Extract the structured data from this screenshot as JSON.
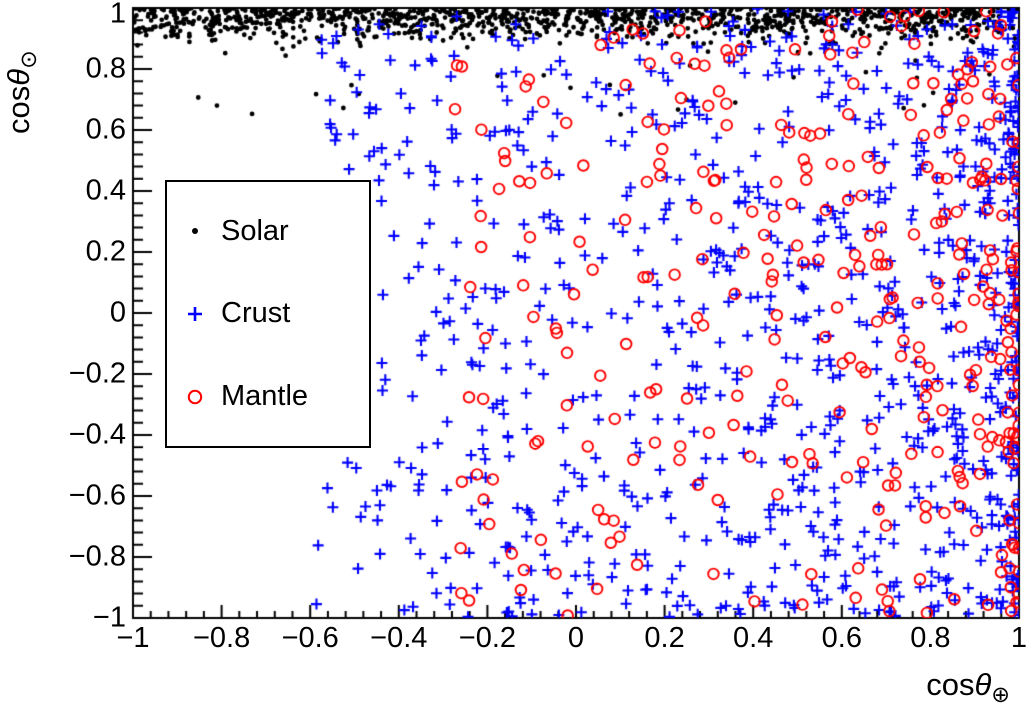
{
  "chart_data": {
    "type": "scatter",
    "title": "",
    "xlabel": {
      "prefix": "cos",
      "symbol": "θ",
      "subscript": "⊕"
    },
    "ylabel": {
      "prefix": "cos",
      "symbol": "θ",
      "subscript": "⊙"
    },
    "xlim": [
      -1,
      1
    ],
    "ylim": [
      -1,
      1
    ],
    "grid": false,
    "legend_position": "upper-left-inside",
    "legend_border_color": "#000000",
    "legend_background": "#ffffff",
    "frame_color": "#000000",
    "background_color": "#ffffff",
    "xticks": {
      "values": [
        -1,
        -0.8,
        -0.6,
        -0.4,
        -0.2,
        0,
        0.2,
        0.4,
        0.6,
        0.8,
        1
      ],
      "labels": [
        "−1",
        "−0.8",
        "−0.6",
        "−0.4",
        "−0.2",
        "0",
        "0.2",
        "0.4",
        "0.6",
        "0.8",
        "1"
      ],
      "minor_step": 0.04,
      "minor_per_major": 5
    },
    "yticks": {
      "values": [
        1,
        0.8,
        0.6,
        0.4,
        0.2,
        0,
        -0.2,
        -0.4,
        -0.6,
        -0.8,
        -1
      ],
      "labels": [
        "1",
        "0.8",
        "0.6",
        "0.4",
        "0.2",
        "0",
        "−0.2",
        "−0.4",
        "−0.6",
        "−0.8",
        "−1"
      ],
      "minor_step": 0.04,
      "minor_per_major": 5
    },
    "series": [
      {
        "name": "Solar",
        "marker": "dot",
        "color": "#000000",
        "marker_size": 2.4,
        "line_width": 1,
        "n_points": 1200,
        "seed": 11,
        "x_dist": {
          "type": "uniform",
          "min": -1,
          "max": 1
        },
        "y_dist": {
          "type": "half_gauss_below",
          "center": 1,
          "sigma": 0.05,
          "min": 0.74
        },
        "outliers": {
          "count": 26,
          "x_min": -1,
          "x_max": 1,
          "y_min": 0.64,
          "y_max": 0.92
        },
        "description": "band concentrated at cos-theta-sun between 0.85 and 1 across all x, sparse outliers down to 0.65"
      },
      {
        "name": "Crust",
        "marker": "plus",
        "color": "#0000ff",
        "marker_size": 5.5,
        "line_width": 2.1,
        "n_points": 1000,
        "seed": 23,
        "x_dist": {
          "type": "power_right",
          "max": 1,
          "a": 1.6,
          "k": 1.7
        },
        "y_dist": {
          "type": "uniform",
          "min": -1,
          "max": 1
        },
        "description": "spans cos-theta-earth from about -0.6 to 1, density increasing toward 1, uniform vertically"
      },
      {
        "name": "Mantle",
        "marker": "circle",
        "color": "#ff0000",
        "marker_size": 5.3,
        "line_width": 1.9,
        "n_points": 340,
        "seed": 37,
        "x_dist": {
          "type": "power_right",
          "max": 1,
          "a": 1.28,
          "k": 1.9
        },
        "y_dist": {
          "type": "uniform",
          "min": -1,
          "max": 1
        },
        "description": "spans cos-theta-earth from about -0.28 to 1, density increasing toward 1, uniform vertically"
      }
    ]
  }
}
